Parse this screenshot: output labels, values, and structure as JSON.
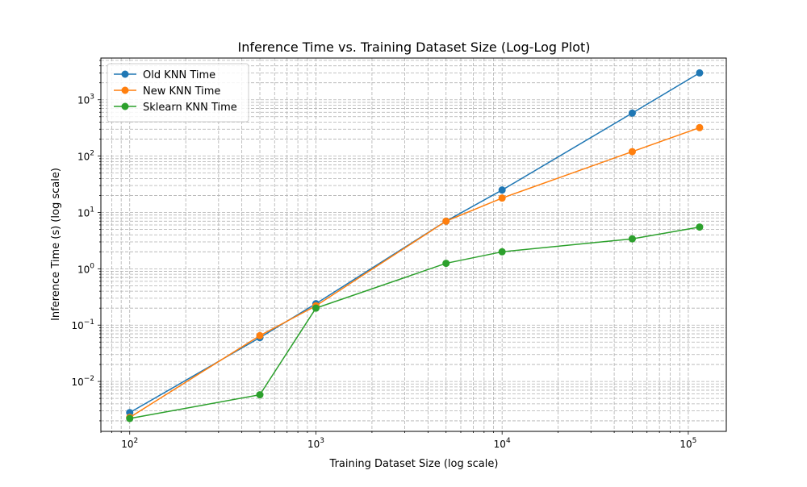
{
  "chart_data": {
    "type": "line",
    "title": "Inference Time vs. Training Dataset Size (Log-Log Plot)",
    "xlabel": "Training Dataset Size (log scale)",
    "ylabel": "Inference Time (s) (log scale)",
    "xscale": "log",
    "yscale": "log",
    "xlim": [
      70,
      160000
    ],
    "ylim": [
      0.0013,
      5500
    ],
    "x": [
      100,
      500,
      1000,
      5000,
      10000,
      50000,
      115000
    ],
    "x_ticks": [
      {
        "value": 100,
        "base": "10",
        "exp": "2"
      },
      {
        "value": 1000,
        "base": "10",
        "exp": "3"
      },
      {
        "value": 10000,
        "base": "10",
        "exp": "4"
      },
      {
        "value": 100000,
        "base": "10",
        "exp": "5"
      }
    ],
    "y_ticks": [
      {
        "value": 0.01,
        "base": "10",
        "exp": "−2"
      },
      {
        "value": 0.1,
        "base": "10",
        "exp": "−1"
      },
      {
        "value": 1,
        "base": "10",
        "exp": "0"
      },
      {
        "value": 10,
        "base": "10",
        "exp": "1"
      },
      {
        "value": 100,
        "base": "10",
        "exp": "2"
      },
      {
        "value": 1000,
        "base": "10",
        "exp": "3"
      }
    ],
    "grid": true,
    "legend_position": "top-left",
    "series": [
      {
        "name": "Old KNN Time",
        "color": "#1f77b4",
        "values": [
          0.0028,
          0.06,
          0.24,
          7.0,
          25,
          580,
          3000
        ]
      },
      {
        "name": "New KNN Time",
        "color": "#ff7f0e",
        "values": [
          0.0023,
          0.065,
          0.22,
          7.0,
          18,
          120,
          320
        ]
      },
      {
        "name": "Sklearn KNN Time",
        "color": "#2ca02c",
        "values": [
          0.0022,
          0.0058,
          0.2,
          1.25,
          2.0,
          3.4,
          5.5
        ]
      }
    ]
  }
}
